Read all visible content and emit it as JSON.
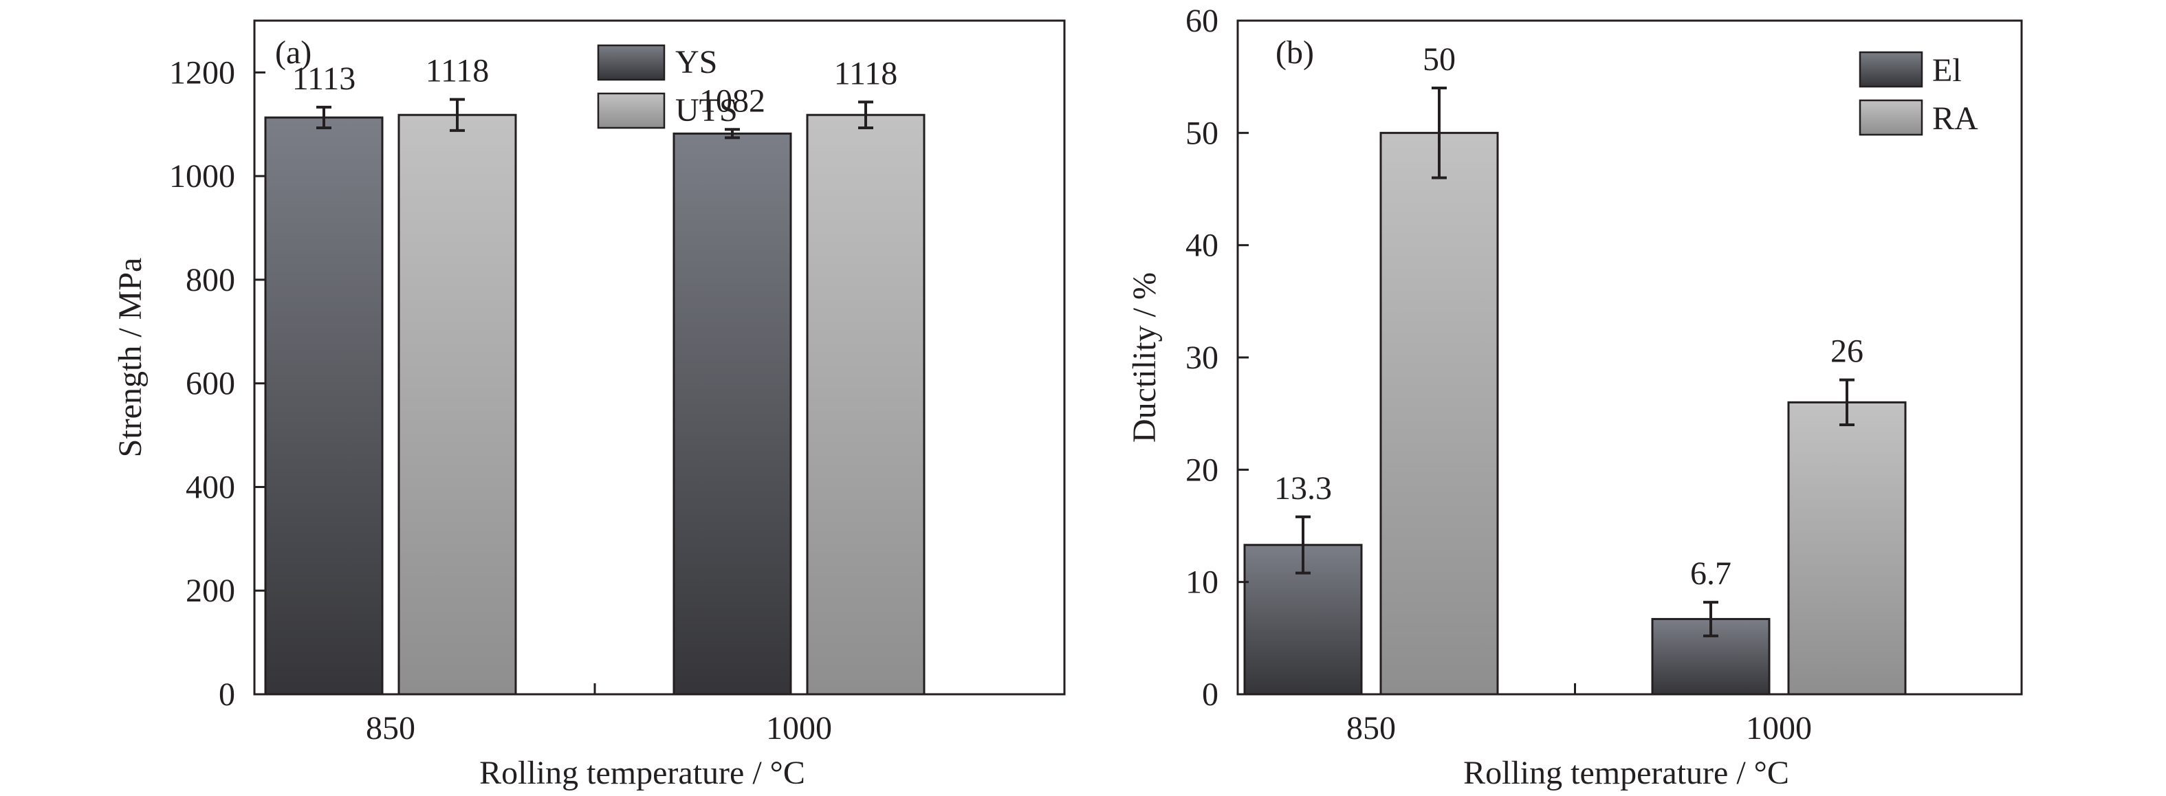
{
  "chart_data": [
    {
      "panel_label": "(a)",
      "type": "bar",
      "xlabel": "Rolling temperature / °C",
      "ylabel": "Strength / MPa",
      "categories": [
        "850",
        "1000"
      ],
      "ylim": [
        0,
        1300
      ],
      "yticks": [
        0,
        200,
        400,
        600,
        800,
        1000,
        1200
      ],
      "grid": false,
      "legend_position": "top-center",
      "series": [
        {
          "name": "YS",
          "values": [
            1113,
            1082
          ],
          "errors": [
            20,
            8
          ],
          "labels": [
            "1113",
            "1082"
          ],
          "color_top": "#7b7e86",
          "color_bottom": "#353539"
        },
        {
          "name": "UTS",
          "values": [
            1118,
            1118
          ],
          "errors": [
            30,
            25
          ],
          "labels": [
            "1118",
            "1118"
          ],
          "color_top": "#c2c2c2",
          "color_bottom": "#8e8e8e"
        }
      ]
    },
    {
      "panel_label": "(b)",
      "type": "bar",
      "xlabel": "Rolling temperature / °C",
      "ylabel": "Ductility / %",
      "categories": [
        "850",
        "1000"
      ],
      "ylim": [
        0,
        60
      ],
      "yticks": [
        0,
        10,
        20,
        30,
        40,
        50,
        60
      ],
      "grid": false,
      "legend_position": "top-right",
      "series": [
        {
          "name": "El",
          "values": [
            13.3,
            6.7
          ],
          "errors": [
            2.5,
            1.5
          ],
          "labels": [
            "13.3",
            "6.7"
          ],
          "color_top": "#7b7e86",
          "color_bottom": "#353539"
        },
        {
          "name": "RA",
          "values": [
            50,
            26
          ],
          "errors": [
            4,
            2
          ],
          "labels": [
            "50",
            "26"
          ],
          "color_top": "#c2c2c2",
          "color_bottom": "#8e8e8e"
        }
      ]
    }
  ]
}
